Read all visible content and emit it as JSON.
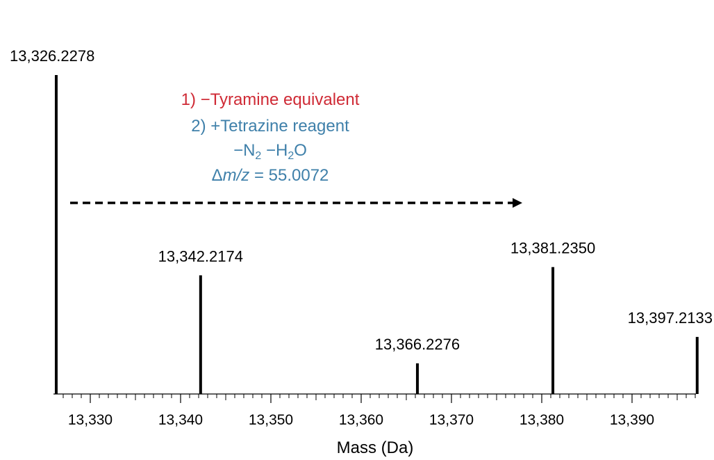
{
  "chart_data": {
    "type": "bar",
    "title": "",
    "xlabel": "Mass (Da)",
    "ylabel": "",
    "xlim": [
      13326.2,
      13397.6
    ],
    "x_ticks": [
      "13,330",
      "13,340",
      "13,350",
      "13,360",
      "13,370",
      "13,380",
      "13,390"
    ],
    "x_tick_values": [
      13330,
      13340,
      13350,
      13360,
      13370,
      13380,
      13390
    ],
    "grid": false,
    "legend": "none",
    "peaks": [
      {
        "mass": 13326.2278,
        "label": "13,326.2278",
        "intensity": 1.0
      },
      {
        "mass": 13342.2174,
        "label": "13,342.2174",
        "intensity": 0.372
      },
      {
        "mass": 13366.2276,
        "label": "13,366.2276",
        "intensity": 0.096
      },
      {
        "mass": 13381.235,
        "label": "13,381.2350",
        "intensity": 0.398
      },
      {
        "mass": 13397.2133,
        "label": "13,397.2133",
        "intensity": 0.179
      }
    ],
    "annotations": {
      "line1": "1) −Tyramine equivalent",
      "line2": "2) +Tetrazine reagent",
      "line3_n": "−N",
      "line3_n_sub": "2",
      "line3_h": " −H",
      "line3_h_sub": "2",
      "line3_o": "O",
      "line4_prefix": "Δ",
      "line4_var": "m/z",
      "line4_value": " = 55.0072"
    },
    "colors": {
      "step1": "#cf2a35",
      "step2": "#3f80aa",
      "peaks": "#000000"
    }
  }
}
